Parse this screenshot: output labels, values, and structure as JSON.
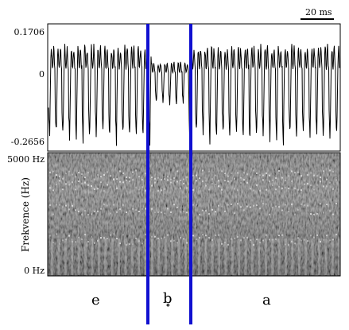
{
  "scale_bar": {
    "label": "20 ms"
  },
  "waveform": {
    "y_max_label": "0.1706",
    "y_zero_label": "0",
    "y_min_label": "-0.2656"
  },
  "spectrogram": {
    "y_axis_title": "Frekvence (Hz)",
    "y_top_label": "5000 Hz",
    "y_bottom_label": "0 Hz"
  },
  "segments": [
    {
      "label": "e"
    },
    {
      "label": "b̥"
    },
    {
      "label": "a"
    }
  ],
  "colors": {
    "boundary": "#1010d0",
    "background": "#ffffff"
  }
}
